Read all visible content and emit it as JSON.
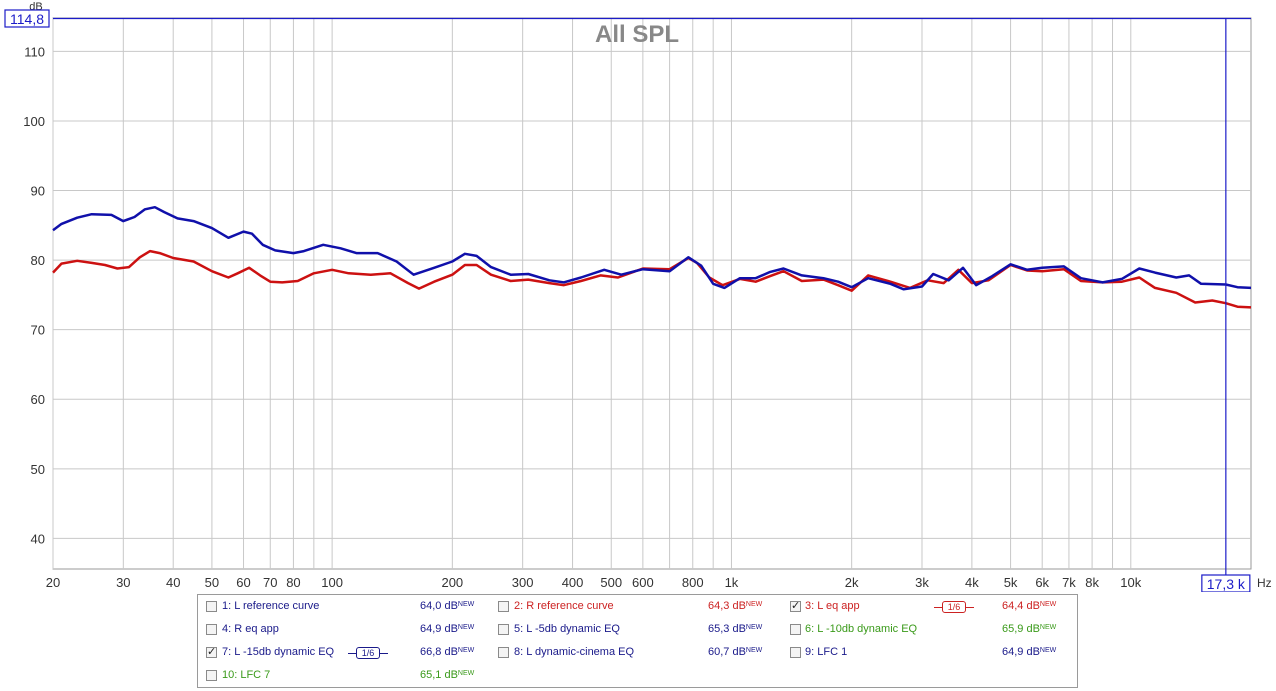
{
  "chart_data": {
    "type": "line",
    "title": "All SPL",
    "ylabel": "dB",
    "xlabel": "Hz",
    "x_scale": "log",
    "xlim": [
      20,
      20000
    ],
    "ylim": [
      35.6,
      114.8
    ],
    "grid": true,
    "y_ticks": [
      40,
      50,
      60,
      70,
      80,
      90,
      100,
      110
    ],
    "x_ticks": [
      {
        "v": 20,
        "t": "20"
      },
      {
        "v": 30,
        "t": "30"
      },
      {
        "v": 40,
        "t": "40"
      },
      {
        "v": 50,
        "t": "50"
      },
      {
        "v": 60,
        "t": "60"
      },
      {
        "v": 70,
        "t": "70"
      },
      {
        "v": 80,
        "t": "80"
      },
      {
        "v": 100,
        "t": "100"
      },
      {
        "v": 200,
        "t": "200"
      },
      {
        "v": 300,
        "t": "300"
      },
      {
        "v": 400,
        "t": "400"
      },
      {
        "v": 500,
        "t": "500"
      },
      {
        "v": 600,
        "t": "600"
      },
      {
        "v": 800,
        "t": "800"
      },
      {
        "v": 1000,
        "t": "1k"
      },
      {
        "v": 2000,
        "t": "2k"
      },
      {
        "v": 3000,
        "t": "3k"
      },
      {
        "v": 4000,
        "t": "4k"
      },
      {
        "v": 5000,
        "t": "5k"
      },
      {
        "v": 6000,
        "t": "6k"
      },
      {
        "v": 7000,
        "t": "7k"
      },
      {
        "v": 8000,
        "t": "8k"
      },
      {
        "v": 10000,
        "t": "10k"
      }
    ],
    "minor_x": [
      90,
      700,
      900,
      9000
    ],
    "cursor": {
      "x_label": "17,3 k",
      "x_value": 17300,
      "y_label": "114,8",
      "y_value": 114.8,
      "color": "#1c1cc8"
    },
    "series": [
      {
        "name": "3: L eq app",
        "color": "#cc1111",
        "points": [
          [
            20,
            78.2
          ],
          [
            21,
            79.5
          ],
          [
            23,
            79.9
          ],
          [
            25,
            79.6
          ],
          [
            27,
            79.3
          ],
          [
            29,
            78.8
          ],
          [
            31,
            79.0
          ],
          [
            33,
            80.4
          ],
          [
            35,
            81.3
          ],
          [
            37,
            81.0
          ],
          [
            40,
            80.3
          ],
          [
            45,
            79.8
          ],
          [
            50,
            78.4
          ],
          [
            55,
            77.5
          ],
          [
            58,
            78.1
          ],
          [
            62,
            78.9
          ],
          [
            66,
            77.8
          ],
          [
            70,
            76.9
          ],
          [
            75,
            76.8
          ],
          [
            82,
            77.0
          ],
          [
            90,
            78.1
          ],
          [
            100,
            78.6
          ],
          [
            110,
            78.1
          ],
          [
            125,
            77.9
          ],
          [
            140,
            78.1
          ],
          [
            155,
            76.7
          ],
          [
            165,
            75.9
          ],
          [
            180,
            76.9
          ],
          [
            200,
            77.9
          ],
          [
            215,
            79.3
          ],
          [
            230,
            79.3
          ],
          [
            250,
            77.9
          ],
          [
            280,
            77.0
          ],
          [
            310,
            77.2
          ],
          [
            350,
            76.7
          ],
          [
            380,
            76.4
          ],
          [
            420,
            77.0
          ],
          [
            470,
            77.8
          ],
          [
            520,
            77.5
          ],
          [
            600,
            78.8
          ],
          [
            700,
            78.7
          ],
          [
            780,
            80.3
          ],
          [
            820,
            79.6
          ],
          [
            880,
            77.5
          ],
          [
            950,
            76.4
          ],
          [
            1050,
            77.3
          ],
          [
            1150,
            76.9
          ],
          [
            1250,
            77.7
          ],
          [
            1350,
            78.4
          ],
          [
            1500,
            77.0
          ],
          [
            1700,
            77.2
          ],
          [
            1850,
            76.4
          ],
          [
            2000,
            75.6
          ],
          [
            2200,
            77.8
          ],
          [
            2500,
            76.9
          ],
          [
            2800,
            76.0
          ],
          [
            3100,
            77.1
          ],
          [
            3400,
            76.7
          ],
          [
            3700,
            78.6
          ],
          [
            4000,
            76.7
          ],
          [
            4400,
            77.1
          ],
          [
            5000,
            79.3
          ],
          [
            5500,
            78.5
          ],
          [
            6000,
            78.4
          ],
          [
            6800,
            78.7
          ],
          [
            7500,
            77.0
          ],
          [
            8500,
            76.8
          ],
          [
            9500,
            76.9
          ],
          [
            10500,
            77.5
          ],
          [
            11500,
            76.0
          ],
          [
            13000,
            75.3
          ],
          [
            14500,
            73.9
          ],
          [
            16000,
            74.2
          ],
          [
            17300,
            73.8
          ],
          [
            18500,
            73.3
          ],
          [
            20000,
            73.2
          ]
        ]
      },
      {
        "name": "7: L -15db dynamic EQ",
        "color": "#1010aa",
        "points": [
          [
            20,
            84.3
          ],
          [
            21,
            85.2
          ],
          [
            23,
            86.1
          ],
          [
            25,
            86.6
          ],
          [
            28,
            86.5
          ],
          [
            30,
            85.6
          ],
          [
            32,
            86.2
          ],
          [
            34,
            87.3
          ],
          [
            36,
            87.6
          ],
          [
            38,
            86.9
          ],
          [
            41,
            86.0
          ],
          [
            45,
            85.6
          ],
          [
            50,
            84.6
          ],
          [
            55,
            83.2
          ],
          [
            60,
            84.1
          ],
          [
            63,
            83.8
          ],
          [
            67,
            82.2
          ],
          [
            72,
            81.4
          ],
          [
            80,
            81.0
          ],
          [
            85,
            81.3
          ],
          [
            95,
            82.2
          ],
          [
            105,
            81.7
          ],
          [
            115,
            81.0
          ],
          [
            130,
            81.0
          ],
          [
            145,
            79.8
          ],
          [
            160,
            77.9
          ],
          [
            180,
            78.9
          ],
          [
            200,
            79.8
          ],
          [
            215,
            80.9
          ],
          [
            230,
            80.6
          ],
          [
            250,
            79.0
          ],
          [
            280,
            77.9
          ],
          [
            310,
            78.0
          ],
          [
            350,
            77.1
          ],
          [
            380,
            76.8
          ],
          [
            420,
            77.5
          ],
          [
            480,
            78.6
          ],
          [
            530,
            77.9
          ],
          [
            600,
            78.7
          ],
          [
            700,
            78.4
          ],
          [
            780,
            80.4
          ],
          [
            840,
            79.2
          ],
          [
            900,
            76.6
          ],
          [
            960,
            76.0
          ],
          [
            1050,
            77.4
          ],
          [
            1150,
            77.4
          ],
          [
            1250,
            78.3
          ],
          [
            1350,
            78.8
          ],
          [
            1500,
            77.8
          ],
          [
            1700,
            77.4
          ],
          [
            1850,
            76.9
          ],
          [
            2000,
            76.1
          ],
          [
            2200,
            77.4
          ],
          [
            2500,
            76.6
          ],
          [
            2700,
            75.8
          ],
          [
            3000,
            76.2
          ],
          [
            3200,
            78.0
          ],
          [
            3500,
            77.1
          ],
          [
            3800,
            78.9
          ],
          [
            4100,
            76.4
          ],
          [
            4500,
            77.7
          ],
          [
            5000,
            79.4
          ],
          [
            5500,
            78.6
          ],
          [
            6000,
            78.9
          ],
          [
            6800,
            79.1
          ],
          [
            7500,
            77.4
          ],
          [
            8500,
            76.8
          ],
          [
            9500,
            77.3
          ],
          [
            10500,
            78.8
          ],
          [
            11500,
            78.2
          ],
          [
            13000,
            77.5
          ],
          [
            14000,
            77.8
          ],
          [
            15000,
            76.6
          ],
          [
            17300,
            76.5
          ],
          [
            18500,
            76.1
          ],
          [
            20000,
            76.0
          ]
        ]
      }
    ]
  },
  "legend": {
    "entries": [
      {
        "label": "1: L reference curve",
        "value": "64,0 dB",
        "sup": "NEW",
        "checked": false,
        "color": "#1a1a8a",
        "valcolor": "#1a1a8a"
      },
      {
        "label": "2: R reference curve",
        "value": "64,3 dB",
        "sup": "NEW",
        "checked": false,
        "color": "#cc2222",
        "valcolor": "#cc2222"
      },
      {
        "label": "3: L eq app",
        "value": "64,4 dB",
        "sup": "NEW",
        "checked": true,
        "color": "#cc2222",
        "valcolor": "#cc2222",
        "smoothing": "1/6"
      },
      {
        "label": "4: R eq app",
        "value": "64,9 dB",
        "sup": "NEW",
        "checked": false,
        "color": "#1a1a8a",
        "valcolor": "#1a1a8a"
      },
      {
        "label": "5: L -5db dynamic EQ",
        "value": "65,3 dB",
        "sup": "NEW",
        "checked": false,
        "color": "#1a1a8a",
        "valcolor": "#1a1a8a"
      },
      {
        "label": "6: L -10db dynamic EQ",
        "value": "65,9 dB",
        "sup": "NEW",
        "checked": false,
        "color": "#3a9a1a",
        "valcolor": "#3a9a1a"
      },
      {
        "label": "7: L -15db dynamic EQ",
        "value": "66,8 dB",
        "sup": "NEW",
        "checked": true,
        "color": "#1a1a8a",
        "valcolor": "#1a1a8a",
        "smoothing": "1/6"
      },
      {
        "label": "8: L dynamic-cinema EQ",
        "value": "60,7 dB",
        "sup": "NEW",
        "checked": false,
        "color": "#1a1a8a",
        "valcolor": "#1a1a8a"
      },
      {
        "label": "9: LFC 1",
        "value": "64,9 dB",
        "sup": "NEW",
        "checked": false,
        "color": "#1a1a8a",
        "valcolor": "#1a1a8a"
      },
      {
        "label": "10: LFC 7",
        "value": "65,1 dB",
        "sup": "NEW",
        "checked": false,
        "color": "#3a9a1a",
        "valcolor": "#3a9a1a"
      }
    ]
  }
}
